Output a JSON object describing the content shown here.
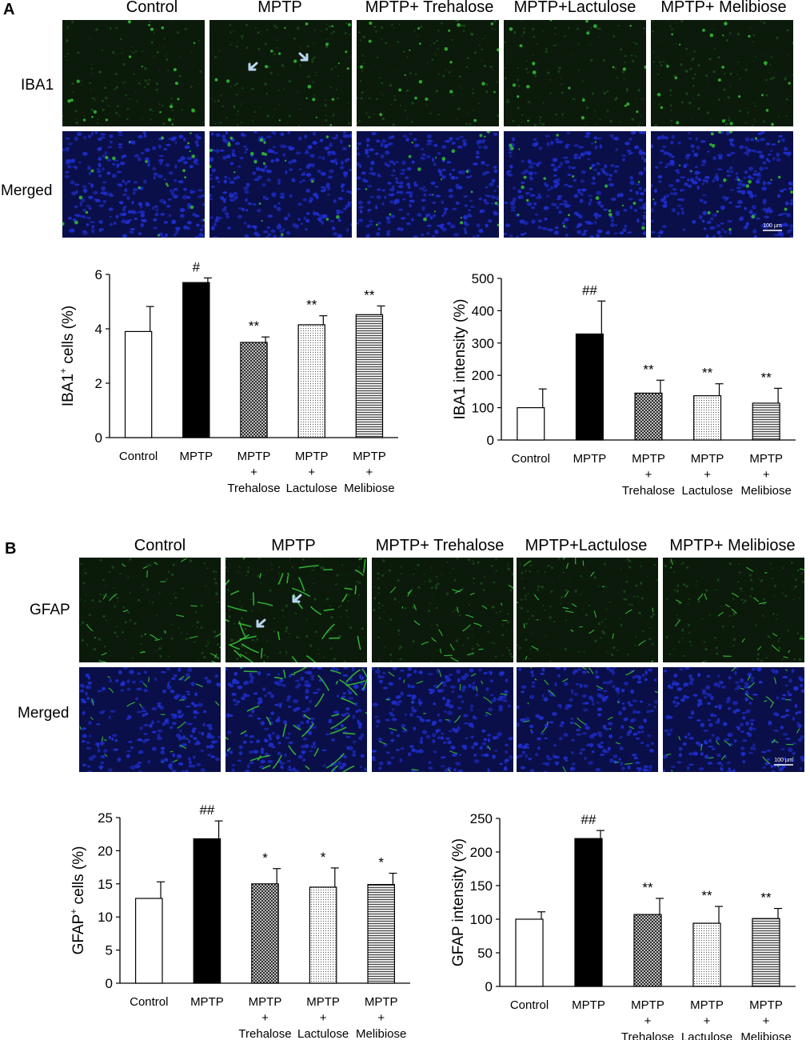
{
  "panel_a": {
    "letter": "A",
    "columns": [
      "Control",
      "MPTP",
      "MPTP+ Trehalose",
      "MPTP+Lactulose",
      "MPTP+ Melibiose"
    ],
    "rows": [
      "IBA1",
      "Merged"
    ],
    "scale_bar": "100 µm"
  },
  "panel_b": {
    "letter": "B",
    "columns": [
      "Control",
      "MPTP",
      "MPTP+ Trehalose",
      "MPTP+Lactulose",
      "MPTP+ Melibiose"
    ],
    "rows": [
      "GFAP",
      "Merged"
    ],
    "scale_bar": "100 µm"
  },
  "colors": {
    "micro_bg": "#0b1a0b",
    "green_signal": "#37c837",
    "blue_nuclei": "#1f2fd0",
    "arrow": "#b8d4ee"
  },
  "chart_data": [
    {
      "id": "iba1-cells",
      "type": "bar",
      "ylabel_main": "IBA1",
      "ylabel_sup": "+",
      "ylabel_rest": " cells (%)",
      "ylim": [
        0,
        6
      ],
      "yticks": [
        "0",
        "2",
        "4",
        "6"
      ],
      "categories": [
        [
          "Control"
        ],
        [
          "MPTP"
        ],
        [
          "MPTP",
          "+",
          "Trehalose"
        ],
        [
          "MPTP",
          "+",
          "Lactulose"
        ],
        [
          "MPTP",
          "+",
          "Melibiose"
        ]
      ],
      "values": [
        3.9,
        5.7,
        3.5,
        4.15,
        4.52
      ],
      "errors": [
        0.92,
        0.17,
        0.2,
        0.33,
        0.32
      ],
      "significance": [
        "",
        "#",
        "**",
        "**",
        "**"
      ],
      "patterns": [
        "white",
        "black",
        "crosshatch",
        "dots",
        "hlines"
      ]
    },
    {
      "id": "iba1-intensity",
      "type": "bar",
      "ylabel_main": "IBA1 intensity (%)",
      "ylabel_sup": "",
      "ylabel_rest": "",
      "ylim": [
        0,
        500
      ],
      "yticks": [
        "0",
        "100",
        "200",
        "300",
        "400",
        "500"
      ],
      "categories": [
        [
          "Control"
        ],
        [
          "MPTP"
        ],
        [
          "MPTP",
          "+",
          "Trehalose"
        ],
        [
          "MPTP",
          "+",
          "Lactulose"
        ],
        [
          "MPTP",
          "+",
          "Melibiose"
        ]
      ],
      "values": [
        100,
        328,
        145,
        137,
        114
      ],
      "errors": [
        58,
        102,
        40,
        37,
        46
      ],
      "significance": [
        "",
        "##",
        "**",
        "**",
        "**"
      ],
      "patterns": [
        "white",
        "black",
        "crosshatch",
        "dots",
        "hlines"
      ]
    },
    {
      "id": "gfap-cells",
      "type": "bar",
      "ylabel_main": "GFAP",
      "ylabel_sup": "+",
      "ylabel_rest": " cells (%)",
      "ylim": [
        0,
        25
      ],
      "yticks": [
        "0",
        "5",
        "10",
        "15",
        "20",
        "25"
      ],
      "categories": [
        [
          "Control"
        ],
        [
          "MPTP"
        ],
        [
          "MPTP",
          "+",
          "Trehalose"
        ],
        [
          "MPTP",
          "+",
          "Lactulose"
        ],
        [
          "MPTP",
          "+",
          "Melibiose"
        ]
      ],
      "values": [
        12.8,
        21.8,
        15.0,
        14.5,
        14.9
      ],
      "errors": [
        2.5,
        2.7,
        2.3,
        2.9,
        1.7
      ],
      "significance": [
        "",
        "##",
        "*",
        "*",
        "*"
      ],
      "patterns": [
        "white",
        "black",
        "crosshatch",
        "dots",
        "hlines"
      ]
    },
    {
      "id": "gfap-intensity",
      "type": "bar",
      "ylabel_main": "GFAP intensity (%)",
      "ylabel_sup": "",
      "ylabel_rest": "",
      "ylim": [
        0,
        250
      ],
      "yticks": [
        "0",
        "50",
        "100",
        "150",
        "200",
        "250"
      ],
      "categories": [
        [
          "Control"
        ],
        [
          "MPTP"
        ],
        [
          "MPTP",
          "+",
          "Trehalose"
        ],
        [
          "MPTP",
          "+",
          "Lactulose"
        ],
        [
          "MPTP",
          "+",
          "Melibiose"
        ]
      ],
      "values": [
        100,
        220,
        107,
        94,
        101
      ],
      "errors": [
        11,
        12,
        24,
        25,
        15
      ],
      "significance": [
        "",
        "##",
        "**",
        "**",
        "**"
      ],
      "patterns": [
        "white",
        "black",
        "crosshatch",
        "dots",
        "hlines"
      ]
    }
  ]
}
